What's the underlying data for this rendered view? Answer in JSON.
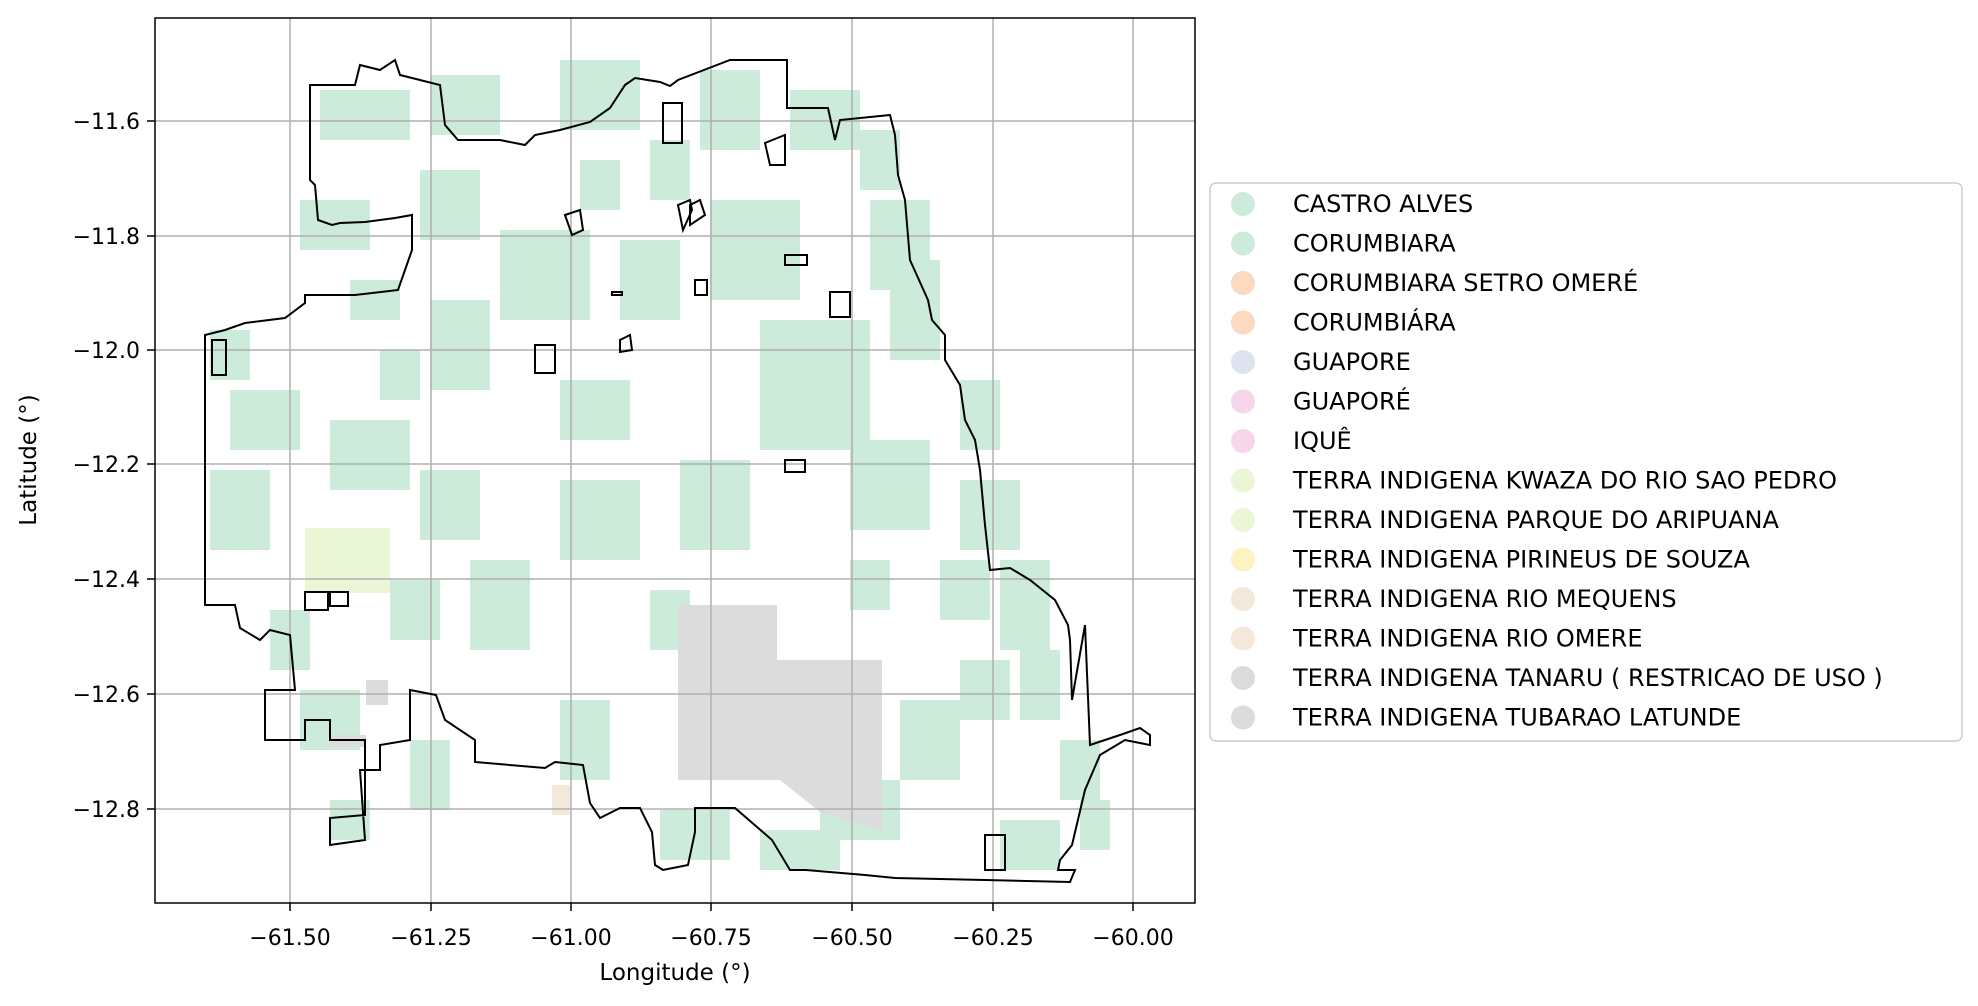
{
  "map": {
    "x_ticks": [
      "−61.50",
      "−61.25",
      "−61.00",
      "−60.75",
      "−60.50",
      "−60.25",
      "−60.00"
    ],
    "y_ticks": [
      "−11.6",
      "−11.8",
      "−12.0",
      "−12.2",
      "−12.4",
      "−12.6",
      "−12.8"
    ],
    "x_label": "Longitude (°)",
    "y_label": "Latitude (°)",
    "grid": true,
    "legend_position": "right"
  },
  "legend": {
    "items": [
      {
        "label": "CASTRO ALVES",
        "color": "#cdebdb"
      },
      {
        "label": "CORUMBIARA",
        "color": "#cdebdb"
      },
      {
        "label": "CORUMBIARA SETRO OMERÉ",
        "color": "#fcd9c0"
      },
      {
        "label": "CORUMBIÁRA",
        "color": "#fcd9c0"
      },
      {
        "label": "GUAPORE",
        "color": "#dde3f1"
      },
      {
        "label": "GUAPORÉ",
        "color": "#f5d6ea"
      },
      {
        "label": "IQUÊ",
        "color": "#f5d6ea"
      },
      {
        "label": "TERRA INDIGENA KWAZA DO RIO SAO PEDRO",
        "color": "#eaf6d6"
      },
      {
        "label": "TERRA INDIGENA PARQUE DO ARIPUANA",
        "color": "#eaf6d6"
      },
      {
        "label": "TERRA INDIGENA PIRINEUS DE SOUZA",
        "color": "#fdf3c0"
      },
      {
        "label": "TERRA INDIGENA RIO MEQUENS",
        "color": "#f4e8da"
      },
      {
        "label": "TERRA INDIGENA RIO OMERE",
        "color": "#f4e8da"
      },
      {
        "label": "TERRA INDIGENA TANARU ( RESTRICAO DE USO )",
        "color": "#dcdcdc"
      },
      {
        "label": "TERRA INDIGENA TUBARAO LATUNDE",
        "color": "#dcdcdc"
      }
    ]
  }
}
